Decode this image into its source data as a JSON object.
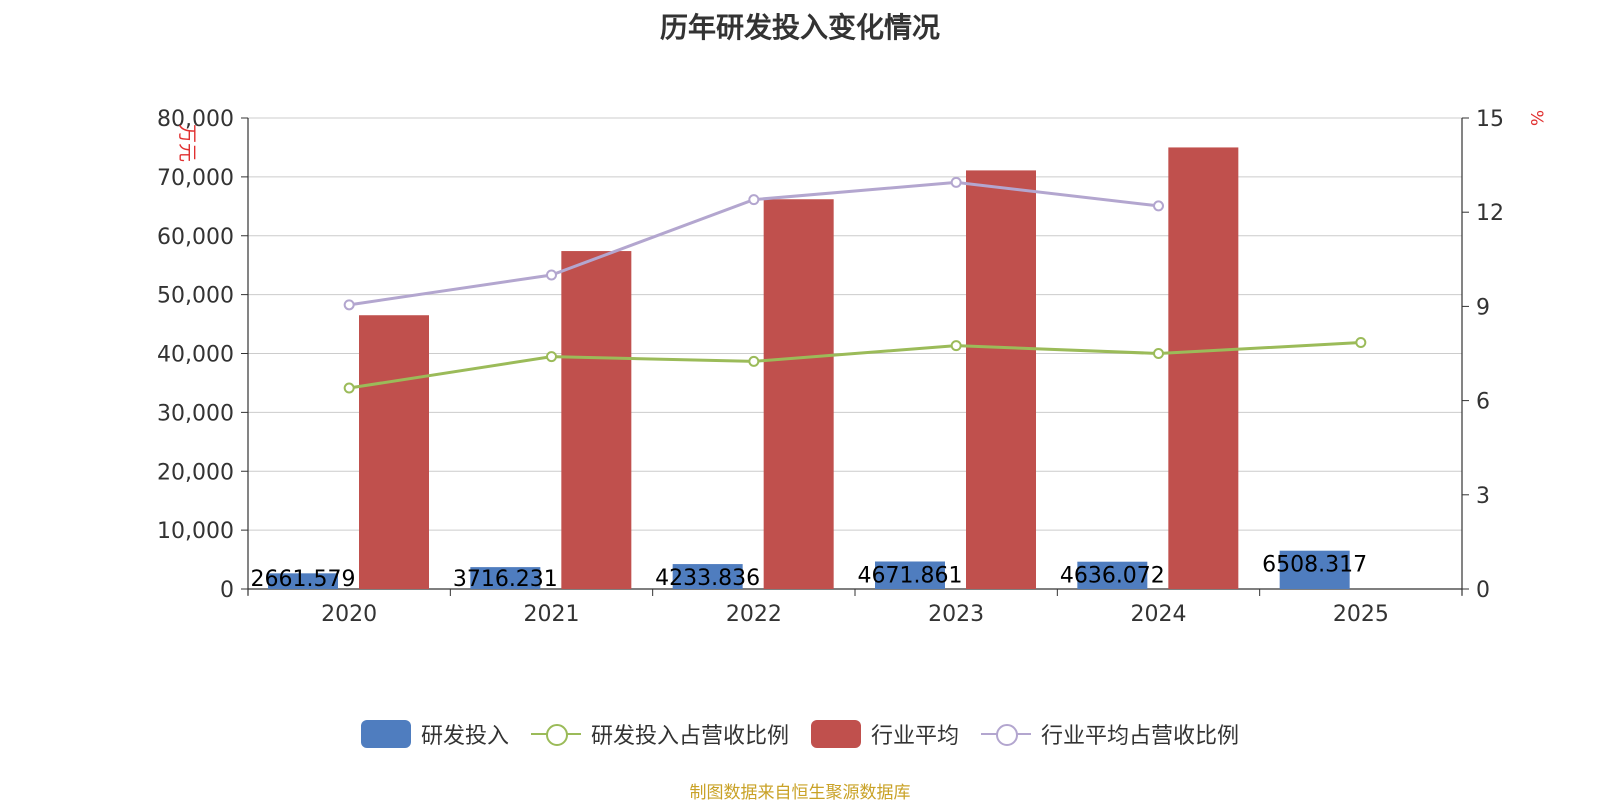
{
  "chart_data": {
    "type": "bar",
    "title": "历年研发投入变化情况",
    "categories": [
      "2020",
      "2021",
      "2022",
      "2023",
      "2024",
      "2025"
    ],
    "y_left": {
      "label": "万元",
      "ticks": [
        "0",
        "10,000",
        "20,000",
        "30,000",
        "40,000",
        "50,000",
        "60,000",
        "70,000",
        "80,000"
      ],
      "range": [
        0,
        80000
      ]
    },
    "y_right": {
      "label": "%",
      "ticks": [
        "0",
        "3",
        "6",
        "9",
        "12",
        "15"
      ],
      "range": [
        0,
        15
      ]
    },
    "series": [
      {
        "name": "研发投入",
        "kind": "bar",
        "axis": "left",
        "color": "#4f7dbf",
        "values": [
          2661.579,
          3716.231,
          4233.836,
          4671.861,
          4636.072,
          6508.317
        ],
        "labels": [
          "2661.579",
          "3716.231",
          "4233.836",
          "4671.861",
          "4636.072",
          "6508.317"
        ]
      },
      {
        "name": "研发投入占营收比例",
        "kind": "line",
        "axis": "right",
        "color": "#9bbb59",
        "values": [
          6.4,
          7.4,
          7.25,
          7.75,
          7.5,
          7.85
        ]
      },
      {
        "name": "行业平均",
        "kind": "bar",
        "axis": "left",
        "color": "#c0504d",
        "values": [
          46500,
          57400,
          66200,
          71100,
          75000,
          null
        ]
      },
      {
        "name": "行业平均占营收比例",
        "kind": "line",
        "axis": "right",
        "color": "#b3a6cf",
        "values": [
          9.05,
          10.0,
          12.4,
          12.95,
          12.2,
          null
        ]
      }
    ],
    "grid": true,
    "legend_position": "bottom"
  },
  "source_note": "制图数据来自恒生聚源数据库"
}
